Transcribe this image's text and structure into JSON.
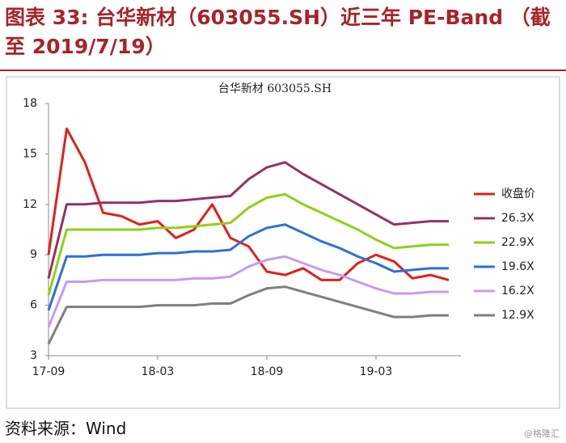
{
  "caption": "图表 33: 台华新材（603055.SH）近三年 PE-Band （截至 2019/7/19）",
  "source": "资料来源：Wind",
  "watermark": "@格隆汇",
  "chart_data": {
    "type": "line",
    "title": "台华新材 603055.SH",
    "categories": [
      "17-09",
      null,
      null,
      null,
      null,
      null,
      "18-03",
      null,
      null,
      null,
      null,
      null,
      "18-09",
      null,
      null,
      null,
      null,
      null,
      "19-03",
      null,
      null,
      null,
      null
    ],
    "ylim": [
      3,
      18
    ],
    "yticks": [
      3,
      6,
      9,
      12,
      15,
      18
    ],
    "legend": "right",
    "series": [
      {
        "name": "收盘价",
        "color": "#e0201b",
        "values": [
          9.0,
          16.5,
          14.5,
          11.5,
          11.3,
          10.8,
          11.0,
          10.0,
          10.5,
          12.0,
          10.0,
          9.5,
          8.0,
          7.8,
          8.2,
          7.5,
          7.5,
          8.5,
          9.0,
          8.6,
          7.6,
          7.8,
          7.5
        ]
      },
      {
        "name": "26.3X",
        "color": "#953163",
        "values": [
          7.6,
          12.0,
          12.0,
          12.1,
          12.1,
          12.1,
          12.2,
          12.2,
          12.3,
          12.4,
          12.5,
          13.5,
          14.2,
          14.5,
          13.8,
          13.2,
          12.6,
          12.0,
          11.4,
          10.8,
          10.9,
          11.0,
          11.0
        ]
      },
      {
        "name": "22.9X",
        "color": "#8fd016",
        "values": [
          6.6,
          10.5,
          10.5,
          10.5,
          10.5,
          10.5,
          10.6,
          10.6,
          10.7,
          10.8,
          10.9,
          11.8,
          12.4,
          12.6,
          12.0,
          11.5,
          11.0,
          10.5,
          9.9,
          9.4,
          9.5,
          9.6,
          9.6
        ]
      },
      {
        "name": "19.6X",
        "color": "#2e6fd6",
        "values": [
          5.7,
          8.9,
          8.9,
          9.0,
          9.0,
          9.0,
          9.1,
          9.1,
          9.2,
          9.2,
          9.3,
          10.1,
          10.6,
          10.8,
          10.3,
          9.8,
          9.4,
          8.9,
          8.5,
          8.0,
          8.1,
          8.2,
          8.2
        ]
      },
      {
        "name": "16.2X",
        "color": "#c59bef",
        "values": [
          4.7,
          7.4,
          7.4,
          7.5,
          7.5,
          7.5,
          7.5,
          7.5,
          7.6,
          7.6,
          7.7,
          8.3,
          8.7,
          8.9,
          8.5,
          8.1,
          7.8,
          7.4,
          7.0,
          6.7,
          6.7,
          6.8,
          6.8
        ]
      },
      {
        "name": "12.9X",
        "color": "#7f7f7f",
        "values": [
          3.7,
          5.9,
          5.9,
          5.9,
          5.9,
          5.9,
          6.0,
          6.0,
          6.0,
          6.1,
          6.1,
          6.6,
          7.0,
          7.1,
          6.8,
          6.5,
          6.2,
          5.9,
          5.6,
          5.3,
          5.3,
          5.4,
          5.4
        ]
      }
    ]
  }
}
